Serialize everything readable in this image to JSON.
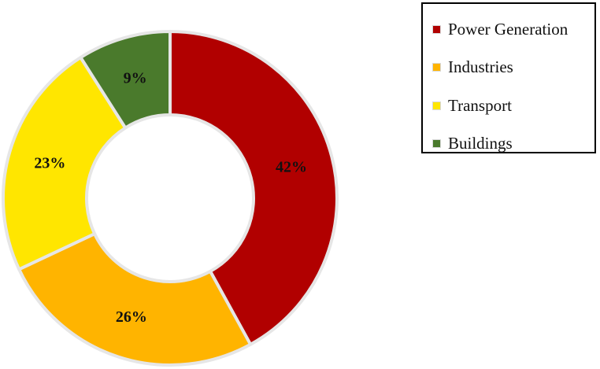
{
  "chart_data": {
    "type": "pie",
    "variant": "donut",
    "title": "",
    "categories": [
      "Power Generation",
      "Industries",
      "Transport",
      "Buildings"
    ],
    "values": [
      42,
      26,
      23,
      9
    ],
    "unit": "%",
    "labels": [
      "42%",
      "26%",
      "23%",
      "9%"
    ],
    "colors": [
      "#b10000",
      "#ffb400",
      "#ffe600",
      "#4a7a2c"
    ],
    "legend_position": "top-right",
    "start_angle_deg": 0,
    "direction": "clockwise"
  },
  "legend": {
    "items": [
      {
        "label": "Power Generation",
        "color": "#b10000"
      },
      {
        "label": "Industries",
        "color": "#ffb400"
      },
      {
        "label": "Transport",
        "color": "#ffe600"
      },
      {
        "label": "Buildings",
        "color": "#4a7a2c"
      }
    ]
  }
}
